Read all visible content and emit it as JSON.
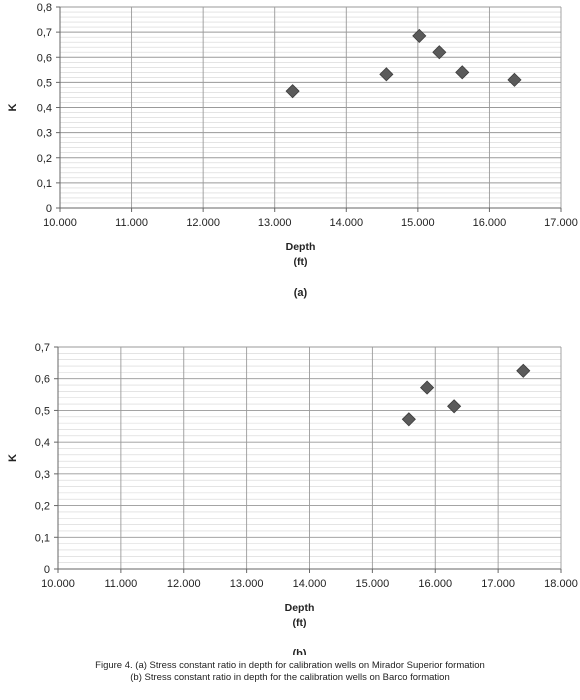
{
  "chart_data": [
    {
      "type": "scatter",
      "title": "",
      "xlabel": "Depth",
      "xunit": "(ft)",
      "ylabel": "K",
      "panel_label": "(a)",
      "xlim": [
        10000,
        17000
      ],
      "ylim": [
        0,
        0.8
      ],
      "x_ticks": [
        10000,
        11000,
        12000,
        13000,
        14000,
        15000,
        16000,
        17000
      ],
      "x_tick_labels": [
        "10.000",
        "11.000",
        "12.000",
        "13.000",
        "14.000",
        "15.000",
        "16.000",
        "17.000"
      ],
      "y_ticks": [
        0,
        0.1,
        0.2,
        0.3,
        0.4,
        0.5,
        0.6,
        0.7,
        0.8
      ],
      "y_tick_labels": [
        "0",
        "0,1",
        "0,2",
        "0,3",
        "0,4",
        "0,5",
        "0,6",
        "0,7",
        "0,8"
      ],
      "minor_y_step": 0.02,
      "grid": true,
      "marker": "diamond",
      "marker_color": "#5a5a5a",
      "points": [
        {
          "x": 13250,
          "y": 0.465
        },
        {
          "x": 14560,
          "y": 0.532
        },
        {
          "x": 15020,
          "y": 0.685
        },
        {
          "x": 15300,
          "y": 0.62
        },
        {
          "x": 15620,
          "y": 0.54
        },
        {
          "x": 16350,
          "y": 0.51
        }
      ]
    },
    {
      "type": "scatter",
      "title": "",
      "xlabel": "Depth",
      "xunit": "(ft)",
      "ylabel": "K",
      "panel_label": "(b)",
      "xlim": [
        10000,
        18000
      ],
      "ylim": [
        0,
        0.7
      ],
      "x_ticks": [
        10000,
        11000,
        12000,
        13000,
        14000,
        15000,
        16000,
        17000,
        18000
      ],
      "x_tick_labels": [
        "10.000",
        "11.000",
        "12.000",
        "13.000",
        "14.000",
        "15.000",
        "16.000",
        "17.000",
        "18.000"
      ],
      "y_ticks": [
        0,
        0.1,
        0.2,
        0.3,
        0.4,
        0.5,
        0.6,
        0.7
      ],
      "y_tick_labels": [
        "0",
        "0,1",
        "0,2",
        "0,3",
        "0,4",
        "0,5",
        "0,6",
        "0,7"
      ],
      "minor_y_step": 0.02,
      "grid": true,
      "marker": "diamond",
      "marker_color": "#5a5a5a",
      "points": [
        {
          "x": 15580,
          "y": 0.472
        },
        {
          "x": 15870,
          "y": 0.572
        },
        {
          "x": 16300,
          "y": 0.513
        },
        {
          "x": 17400,
          "y": 0.625
        }
      ]
    }
  ],
  "caption": {
    "line1": "Figure 4. (a) Stress constant ratio in depth for calibration wells on Mirador Superior formation",
    "line2": "(b) Stress constant ratio in depth for the calibration wells on Barco formation"
  }
}
